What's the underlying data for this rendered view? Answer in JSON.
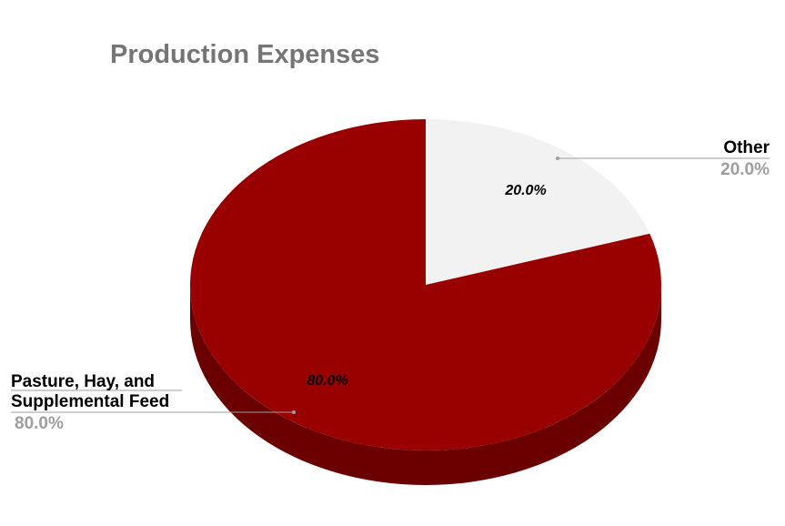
{
  "chart_data": {
    "type": "pie",
    "title": "Production Expenses",
    "slices": [
      {
        "label": "Other",
        "value": 20.0,
        "pct_label": "20.0%",
        "inner_label": "20.0%",
        "color": "#f2f2f2",
        "side_color": "#c8c8c8"
      },
      {
        "label_lines": [
          "Pasture, Hay, and",
          "Supplemental Feed"
        ],
        "label": "Pasture, Hay, and Supplemental Feed",
        "value": 80.0,
        "pct_label": "80.0%",
        "inner_label": "80.0%",
        "color": "#990000",
        "side_color": "#6a0000"
      }
    ],
    "legend": "none",
    "style": "3d"
  }
}
